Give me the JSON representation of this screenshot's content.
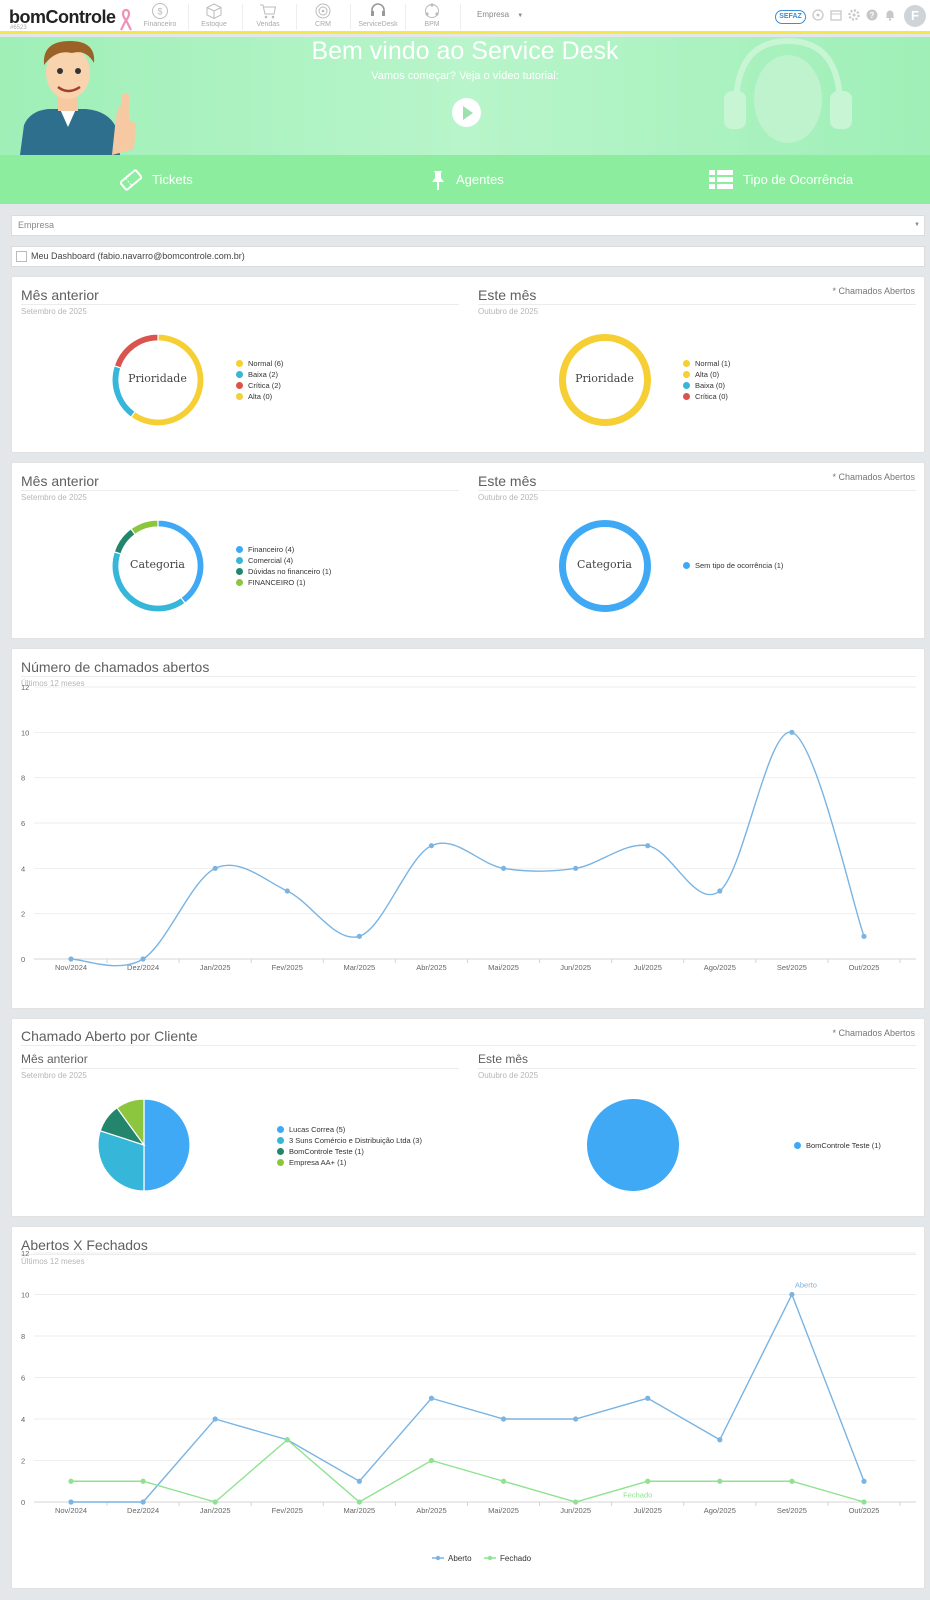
{
  "topbar": {
    "brand": "bomControle",
    "brand_sub": "#6523",
    "modules": [
      "Financeiro",
      "Estoque",
      "Vendas",
      "CRM",
      "ServiceDesk",
      "BPM"
    ],
    "empresa_label": "Empresa",
    "sefaz_label": "SEFAZ",
    "avatar_letter": "F"
  },
  "hero": {
    "title_prefix": "Bem vindo ao",
    "title_highlight": "Service Desk",
    "subtitle": "Vamos começar? Veja o vídeo tutorial:"
  },
  "nav": {
    "tickets": "Tickets",
    "agentes": "Agentes",
    "tipo": "Tipo de Ocorrência"
  },
  "filters": {
    "empresa_placeholder": "Empresa",
    "dashboard_label": "Meu Dashboard (fabio.navarro@bomcontrole.com.br)"
  },
  "prioridade": {
    "note": "* Chamados Abertos",
    "prev_title": "Mês anterior",
    "prev_sub": "Setembro de 2025",
    "curr_title": "Este mês",
    "curr_sub": "Outubro de 2025",
    "center": "Prioridade"
  },
  "categoria": {
    "note": "* Chamados Abertos",
    "prev_title": "Mês anterior",
    "prev_sub": "Setembro de 2025",
    "curr_title": "Este mês",
    "curr_sub": "Outubro de 2025",
    "center": "Categoria"
  },
  "chamados": {
    "title": "Número de chamados abertos",
    "sub": "Últimos 12 meses"
  },
  "cliente": {
    "title": "Chamado Aberto por Cliente",
    "note": "* Chamados Abertos",
    "prev_title": "Mês anterior",
    "prev_sub": "Setembro de 2025",
    "curr_title": "Este mês",
    "curr_sub": "Outubro de 2025"
  },
  "abertos": {
    "title": "Abertos X Fechados",
    "sub": "Últimos 12 meses"
  },
  "colors": {
    "yellow": "#f5cf33",
    "blue": "#3fa9f5",
    "red": "#d9534f",
    "teal": "#36b6d8",
    "darkgreen": "#24856d",
    "lime": "#8cc63f",
    "line_blue": "#7ab4e3",
    "line_green": "#8fe28f"
  },
  "chart_data": [
    {
      "type": "pie",
      "title": "Prioridade",
      "period": "Setembro de 2025",
      "slices": [
        {
          "label": "Normal (6)",
          "value": 6,
          "color": "#f5cf33"
        },
        {
          "label": "Baixa (2)",
          "value": 2,
          "color": "#36b6d8"
        },
        {
          "label": "Crítica (2)",
          "value": 2,
          "color": "#d9534f"
        },
        {
          "label": "Alta (0)",
          "value": 0,
          "color": "#f5cf33"
        }
      ]
    },
    {
      "type": "pie",
      "title": "Prioridade",
      "period": "Outubro de 2025",
      "slices": [
        {
          "label": "Normal (1)",
          "value": 1,
          "color": "#f5cf33"
        },
        {
          "label": "Alta (0)",
          "value": 0,
          "color": "#f5cf33"
        },
        {
          "label": "Baixa (0)",
          "value": 0,
          "color": "#36b6d8"
        },
        {
          "label": "Crítica (0)",
          "value": 0,
          "color": "#d9534f"
        }
      ]
    },
    {
      "type": "pie",
      "title": "Categoria",
      "period": "Setembro de 2025",
      "slices": [
        {
          "label": "Financeiro (4)",
          "value": 4,
          "color": "#3fa9f5"
        },
        {
          "label": "Comercial (4)",
          "value": 4,
          "color": "#36b6d8"
        },
        {
          "label": "Dúvidas no financeiro (1)",
          "value": 1,
          "color": "#24856d"
        },
        {
          "label": "FINANCEIRO (1)",
          "value": 1,
          "color": "#8cc63f"
        }
      ]
    },
    {
      "type": "pie",
      "title": "Categoria",
      "period": "Outubro de 2025",
      "slices": [
        {
          "label": "Sem tipo de ocorrência (1)",
          "value": 1,
          "color": "#3fa9f5"
        }
      ]
    },
    {
      "type": "line",
      "title": "Número de chamados abertos",
      "categories": [
        "Nov/2024",
        "Dez/2024",
        "Jan/2025",
        "Fev/2025",
        "Mar/2025",
        "Abr/2025",
        "Mai/2025",
        "Jun/2025",
        "Jul/2025",
        "Ago/2025",
        "Set/2025",
        "Out/2025"
      ],
      "series": [
        {
          "values": [
            0,
            0,
            4,
            3,
            1,
            5,
            4,
            4,
            5,
            3,
            10,
            1
          ],
          "color": "#7ab4e3"
        }
      ],
      "ylim": [
        0,
        12
      ],
      "yticks": [
        0,
        2,
        4,
        6,
        8,
        10,
        12
      ]
    },
    {
      "type": "pie",
      "title": "Chamado Aberto por Cliente",
      "period": "Setembro de 2025",
      "slices": [
        {
          "label": "Lucas Correa (5)",
          "value": 5,
          "color": "#3fa9f5"
        },
        {
          "label": "3 Suns Comércio e Distribuição Ltda (3)",
          "value": 3,
          "color": "#36b6d8"
        },
        {
          "label": "BomControle Teste (1)",
          "value": 1,
          "color": "#24856d"
        },
        {
          "label": "Empresa AA+ (1)",
          "value": 1,
          "color": "#8cc63f"
        }
      ]
    },
    {
      "type": "pie",
      "title": "Chamado Aberto por Cliente",
      "period": "Outubro de 2025",
      "slices": [
        {
          "label": "BomControle Teste (1)",
          "value": 1,
          "color": "#3fa9f5"
        }
      ]
    },
    {
      "type": "line",
      "title": "Abertos X Fechados",
      "categories": [
        "Nov/2024",
        "Dez/2024",
        "Jan/2025",
        "Fev/2025",
        "Mar/2025",
        "Abr/2025",
        "Mai/2025",
        "Jun/2025",
        "Jul/2025",
        "Ago/2025",
        "Set/2025",
        "Out/2025"
      ],
      "series": [
        {
          "name": "Aberto",
          "values": [
            0,
            0,
            4,
            3,
            1,
            5,
            4,
            4,
            5,
            3,
            10,
            1
          ],
          "color": "#7ab4e3"
        },
        {
          "name": "Fechado",
          "values": [
            1,
            1,
            0,
            3,
            0,
            2,
            1,
            0,
            1,
            1,
            1,
            0
          ],
          "color": "#8fe28f"
        }
      ],
      "ylim": [
        0,
        12
      ],
      "yticks": [
        0,
        2,
        4,
        6,
        8,
        10,
        12
      ],
      "legend": "bottom"
    }
  ]
}
